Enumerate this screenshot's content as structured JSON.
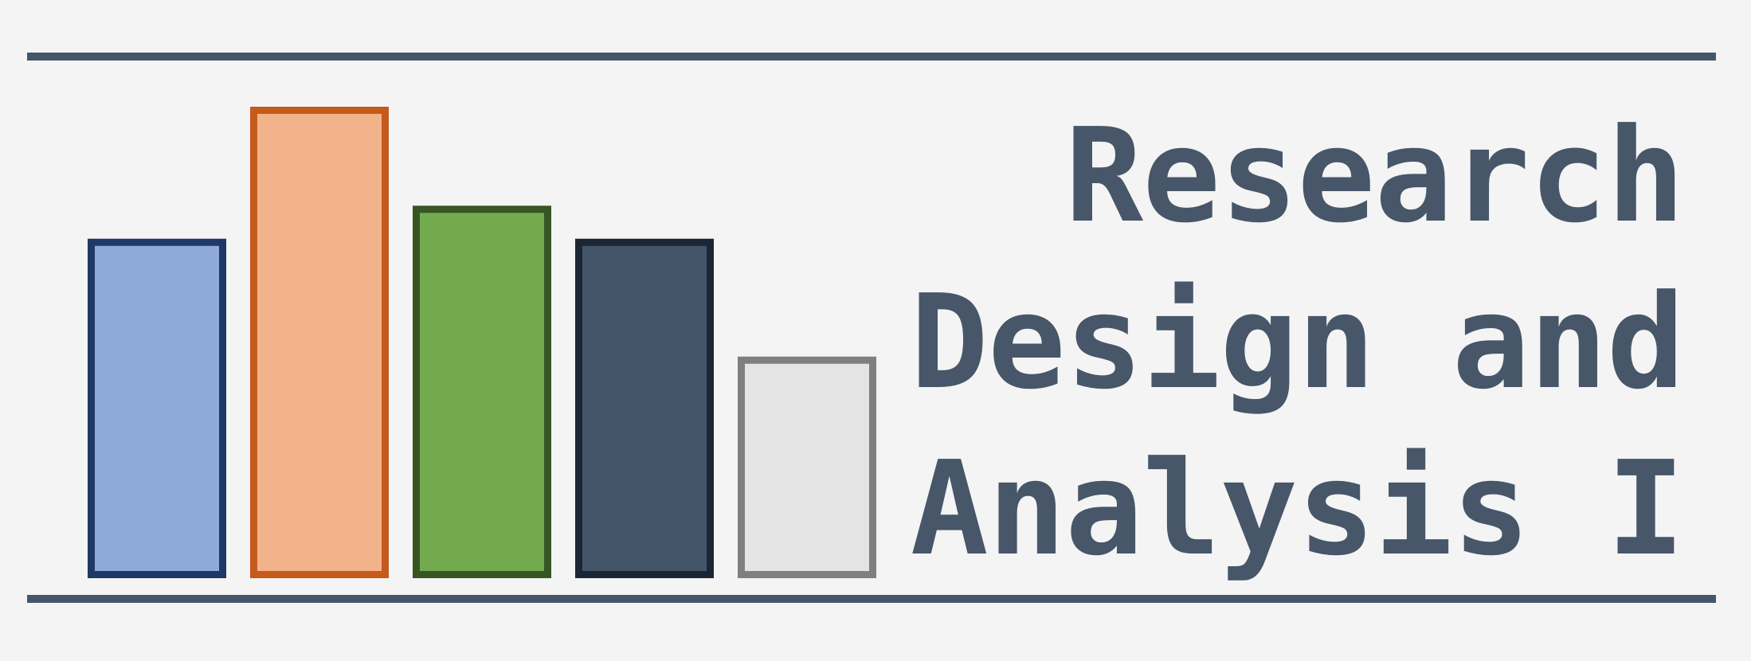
{
  "logo": {
    "title_lines": [
      "Research",
      "Design and",
      "Analysis I"
    ],
    "text_color": "#475669",
    "rule_color": "#46566a",
    "background": "#f4f4f4",
    "bars": [
      {
        "icon": "blue-bar",
        "relative_height": 0.72,
        "fill": "#8eaad8",
        "stroke": "#1f3864"
      },
      {
        "icon": "orange-bar",
        "relative_height": 1.0,
        "fill": "#f2b28a",
        "stroke": "#c55a1d"
      },
      {
        "icon": "green-bar",
        "relative_height": 0.79,
        "fill": "#72aa4d",
        "stroke": "#375623"
      },
      {
        "icon": "slate-bar",
        "relative_height": 0.72,
        "fill": "#445469",
        "stroke": "#1c2533"
      },
      {
        "icon": "gray-bar",
        "relative_height": 0.47,
        "fill": "#e4e4e4",
        "stroke": "#7f7f7f"
      }
    ]
  }
}
